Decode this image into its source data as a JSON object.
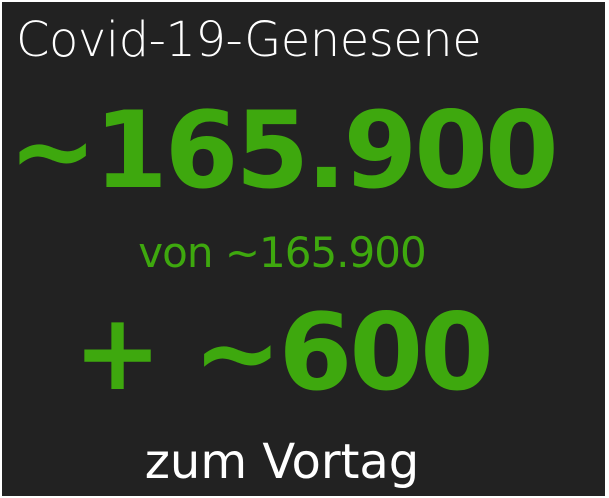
{
  "title": "Covid-19-Genesene",
  "value": "~165.900",
  "of_text": "von ~165.900",
  "delta": "+ ~600",
  "delta_label": "zum Vortag",
  "colors": {
    "background": "#222222",
    "accent": "#3ea80e",
    "text": "#ffffff"
  }
}
